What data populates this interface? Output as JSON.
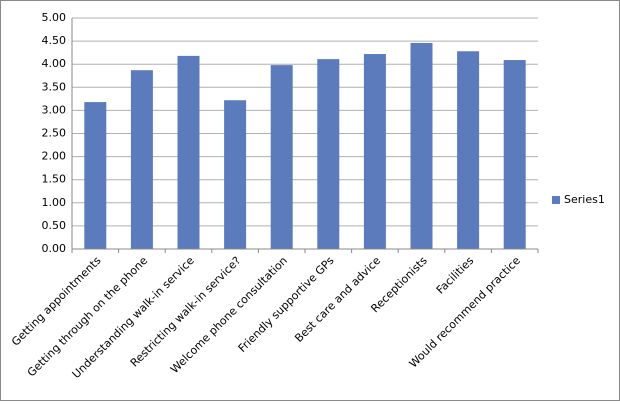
{
  "chart_data": {
    "type": "bar",
    "categories": [
      "Getting appointments",
      "Getting through on the phone",
      "Understanding walk-in service",
      "Restricting walk-in service?",
      "Welcome phone consultation",
      "Friendly supportive GPs",
      "Best care and advice",
      "Receptionists",
      "Facilities",
      "Would recommend practice"
    ],
    "series": [
      {
        "name": "Series1",
        "color": "#5b7bbd",
        "values": [
          3.18,
          3.87,
          4.18,
          3.22,
          3.98,
          4.11,
          4.22,
          4.46,
          4.28,
          4.09
        ]
      }
    ],
    "ylim": [
      0,
      5
    ],
    "yticks": [
      {
        "value": 0,
        "label": "0.00"
      },
      {
        "value": 0.5,
        "label": "0.50"
      },
      {
        "value": 1,
        "label": "1.00"
      },
      {
        "value": 1.5,
        "label": "1.50"
      },
      {
        "value": 2,
        "label": "2.00"
      },
      {
        "value": 2.5,
        "label": "2.50"
      },
      {
        "value": 3,
        "label": "3.00"
      },
      {
        "value": 3.5,
        "label": "3.50"
      },
      {
        "value": 4,
        "label": "4.00"
      },
      {
        "value": 4.5,
        "label": "4.50"
      },
      {
        "value": 5,
        "label": "5.00"
      }
    ],
    "grid": true,
    "legend": "right"
  }
}
